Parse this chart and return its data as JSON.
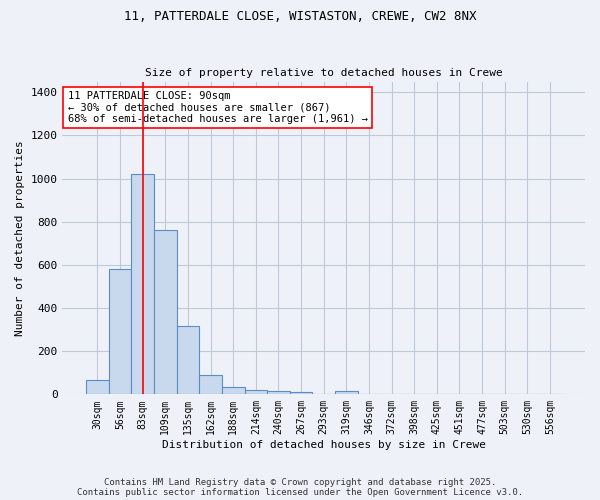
{
  "title1": "11, PATTERDALE CLOSE, WISTASTON, CREWE, CW2 8NX",
  "title2": "Size of property relative to detached houses in Crewe",
  "xlabel": "Distribution of detached houses by size in Crewe",
  "ylabel": "Number of detached properties",
  "bar_values": [
    65,
    580,
    1020,
    760,
    315,
    90,
    35,
    20,
    15,
    10,
    0,
    15,
    0,
    0,
    0,
    0,
    0,
    0,
    0,
    0,
    0
  ],
  "bar_labels": [
    "30sqm",
    "56sqm",
    "83sqm",
    "109sqm",
    "135sqm",
    "162sqm",
    "188sqm",
    "214sqm",
    "240sqm",
    "267sqm",
    "293sqm",
    "319sqm",
    "346sqm",
    "372sqm",
    "398sqm",
    "425sqm",
    "451sqm",
    "477sqm",
    "503sqm",
    "530sqm",
    "556sqm"
  ],
  "bar_color": "#c9d9ed",
  "bar_edge_color": "#5b8cc8",
  "grid_color": "#c0c8d8",
  "bg_color": "#eef2f8",
  "red_line_x": 2.0,
  "annotation_title": "11 PATTERDALE CLOSE: 90sqm",
  "annotation_line1": "← 30% of detached houses are smaller (867)",
  "annotation_line2": "68% of semi-detached houses are larger (1,961) →",
  "footer1": "Contains HM Land Registry data © Crown copyright and database right 2025.",
  "footer2": "Contains public sector information licensed under the Open Government Licence v3.0.",
  "ylim": [
    0,
    1450
  ],
  "yticks": [
    0,
    200,
    400,
    600,
    800,
    1000,
    1200,
    1400
  ]
}
